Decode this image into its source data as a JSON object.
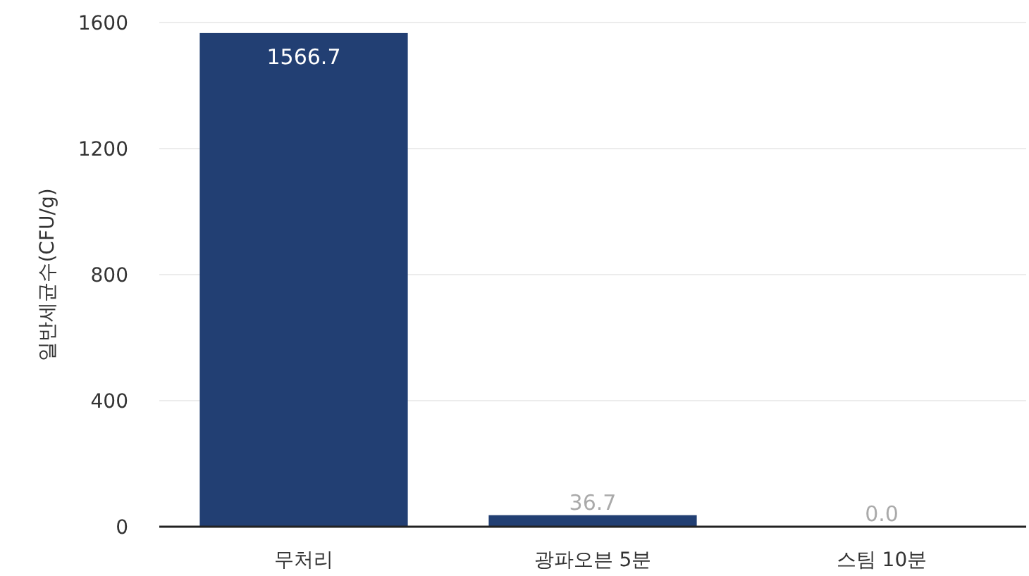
{
  "chart_data": {
    "type": "bar",
    "ylabel": "일반세균수(CFU/g)",
    "categories": [
      "무처리",
      "광파오븐 5분",
      "스팀 10분"
    ],
    "values": [
      1566.7,
      36.7,
      0.0
    ],
    "value_labels": [
      "1566.7",
      "36.7",
      "0.0"
    ],
    "color": "#223f73",
    "ylim": [
      0,
      1600
    ],
    "yticks": [
      0,
      400,
      800,
      1200,
      1600
    ],
    "grid": "y"
  }
}
